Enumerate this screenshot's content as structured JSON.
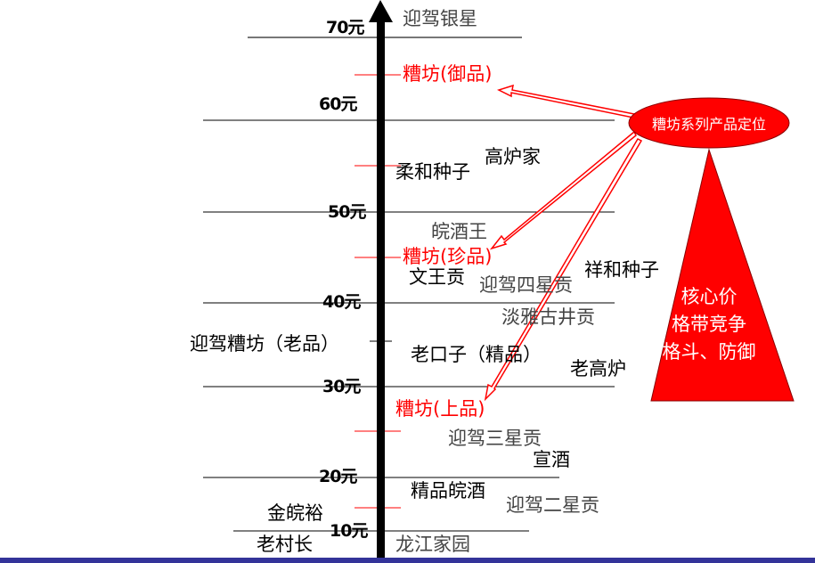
{
  "axis_ticks": [
    "70元",
    "60元",
    "50元",
    "40元",
    "30元",
    "20元",
    "10元"
  ],
  "products": {
    "yingjia_yinxing": "迎驾银星",
    "caofang_yupin": "糟坊(御品)",
    "gaolujia": "高炉家",
    "rouhe_zhongzi": "柔和种子",
    "wanjiu_wang": "皖酒王",
    "caofang_zhenpin": "糟坊(珍品)",
    "xianghe_zhongzi": "祥和种子",
    "wenwang_gong": "文王贡",
    "yingjia_sixing": "迎驾四星贡",
    "danya_gujing": "淡雅古井贡",
    "yingjia_caofang_laopin": "迎驾糟坊（老品）",
    "laokouzi_jingpin": "老口子（精品）",
    "laogaolu": "老高炉",
    "caofang_shangpin": "糟坊(上品)",
    "yingjia_sanxing": "迎驾三星贡",
    "xuanjiu": "宣酒",
    "jingpin_wanjiu": "精品皖酒",
    "jinwanyu": "金皖裕",
    "yingjia_erxing": "迎驾二星贡",
    "laocunzhang": "老村长",
    "longjiang_jiayuan": "龙江家园"
  },
  "callout": "糟坊系列产品定位",
  "triangle_lines": [
    "核心价",
    "格带竞争",
    "格斗、防御"
  ],
  "colors": {
    "accent": "#ff0000",
    "bottom_bar": "#333399"
  }
}
